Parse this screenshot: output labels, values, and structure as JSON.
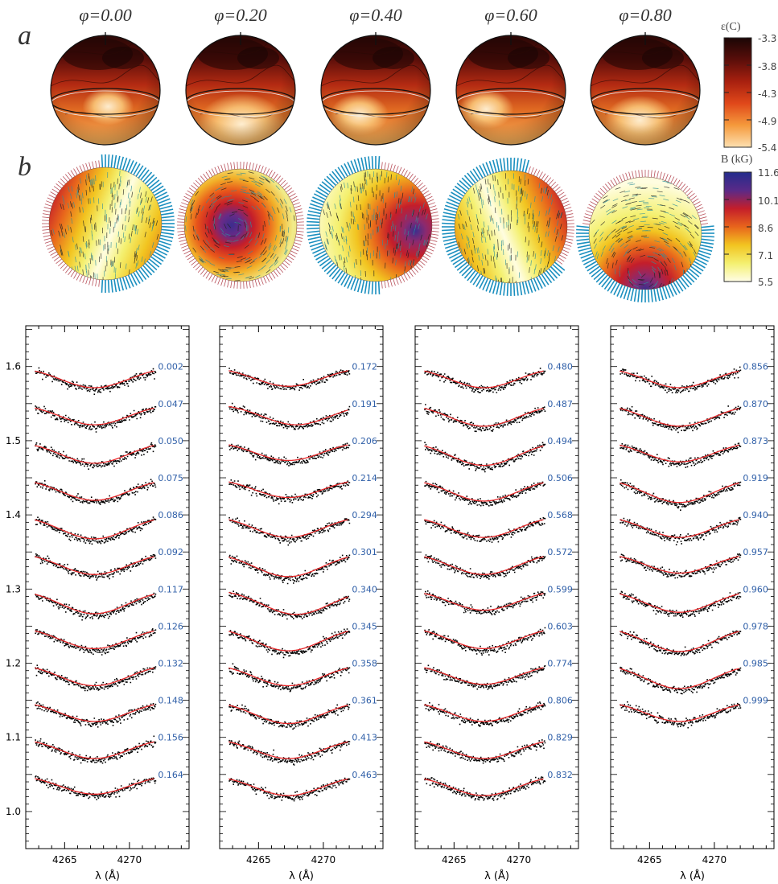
{
  "panel_labels": {
    "a": "a",
    "b": "b"
  },
  "phases": [
    "φ=0.00",
    "φ=0.20",
    "φ=0.40",
    "φ=0.60",
    "φ=0.80"
  ],
  "colorbar_a": {
    "title": "ε(C)",
    "ticks": [
      "-3.3",
      "-3.8",
      "-4.3",
      "-4.9",
      "-5.4"
    ],
    "colors": [
      "#1a0605",
      "#5a0e0a",
      "#a8200f",
      "#e0481a",
      "#f59a3c",
      "#fde0b0"
    ]
  },
  "colorbar_b": {
    "title": "B (kG)",
    "ticks": [
      "11.6",
      "10.1",
      "8.6",
      "7.1",
      "5.5"
    ],
    "colors": [
      "#232c8c",
      "#5a2a88",
      "#c41e2a",
      "#e8651c",
      "#f2c420",
      "#f4f070",
      "#fffde6"
    ]
  },
  "arrow_colors": {
    "outward": "#1a8fbf",
    "inward": "#b8505a"
  },
  "chart_data": [
    {
      "type": "line",
      "xlabel": "λ (Å)",
      "xticks": [
        4265,
        4270
      ],
      "xlim": [
        4262,
        4274.6
      ],
      "ylim": [
        0.95,
        1.655
      ],
      "yticks": [
        "1.0",
        "1.1",
        "1.2",
        "1.3",
        "1.4",
        "1.5",
        "1.6"
      ],
      "offset_step": 0.05,
      "series": [
        {
          "name": "0.002",
          "offset": 1.6,
          "depth": 0.03
        },
        {
          "name": "0.047",
          "offset": 1.55,
          "depth": 0.03
        },
        {
          "name": "0.050",
          "offset": 1.5,
          "depth": 0.032
        },
        {
          "name": "0.075",
          "offset": 1.45,
          "depth": 0.032
        },
        {
          "name": "0.086",
          "offset": 1.4,
          "depth": 0.034
        },
        {
          "name": "0.092",
          "offset": 1.35,
          "depth": 0.032
        },
        {
          "name": "0.117",
          "offset": 1.3,
          "depth": 0.035
        },
        {
          "name": "0.126",
          "offset": 1.25,
          "depth": 0.032
        },
        {
          "name": "0.132",
          "offset": 1.2,
          "depth": 0.032
        },
        {
          "name": "0.148",
          "offset": 1.15,
          "depth": 0.03
        },
        {
          "name": "0.156",
          "offset": 1.1,
          "depth": 0.03
        },
        {
          "name": "0.164",
          "offset": 1.05,
          "depth": 0.028
        }
      ]
    },
    {
      "type": "line",
      "xlabel": "λ (Å)",
      "xticks": [
        4265,
        4270
      ],
      "xlim": [
        4262,
        4274.6
      ],
      "ylim": [
        0.95,
        1.655
      ],
      "series": [
        {
          "name": "0.172",
          "offset": 1.6,
          "depth": 0.028
        },
        {
          "name": "0.191",
          "offset": 1.55,
          "depth": 0.03
        },
        {
          "name": "0.206",
          "offset": 1.5,
          "depth": 0.028
        },
        {
          "name": "0.214",
          "offset": 1.45,
          "depth": 0.028
        },
        {
          "name": "0.294",
          "offset": 1.4,
          "depth": 0.032
        },
        {
          "name": "0.301",
          "offset": 1.35,
          "depth": 0.035
        },
        {
          "name": "0.340",
          "offset": 1.3,
          "depth": 0.036
        },
        {
          "name": "0.345",
          "offset": 1.25,
          "depth": 0.035
        },
        {
          "name": "0.358",
          "offset": 1.2,
          "depth": 0.032
        },
        {
          "name": "0.361",
          "offset": 1.15,
          "depth": 0.033
        },
        {
          "name": "0.413",
          "offset": 1.1,
          "depth": 0.03
        },
        {
          "name": "0.463",
          "offset": 1.05,
          "depth": 0.03
        }
      ]
    },
    {
      "type": "line",
      "xlabel": "λ (Å)",
      "xticks": [
        4265,
        4270
      ],
      "xlim": [
        4262,
        4274.6
      ],
      "ylim": [
        0.95,
        1.655
      ],
      "series": [
        {
          "name": "0.480",
          "offset": 1.6,
          "depth": 0.03
        },
        {
          "name": "0.487",
          "offset": 1.55,
          "depth": 0.032
        },
        {
          "name": "0.494",
          "offset": 1.5,
          "depth": 0.035
        },
        {
          "name": "0.506",
          "offset": 1.45,
          "depth": 0.033
        },
        {
          "name": "0.568",
          "offset": 1.4,
          "depth": 0.032
        },
        {
          "name": "0.572",
          "offset": 1.35,
          "depth": 0.032
        },
        {
          "name": "0.599",
          "offset": 1.3,
          "depth": 0.03
        },
        {
          "name": "0.603",
          "offset": 1.25,
          "depth": 0.032
        },
        {
          "name": "0.774",
          "offset": 1.2,
          "depth": 0.03
        },
        {
          "name": "0.806",
          "offset": 1.15,
          "depth": 0.03
        },
        {
          "name": "0.829",
          "offset": 1.1,
          "depth": 0.03
        },
        {
          "name": "0.832",
          "offset": 1.05,
          "depth": 0.03
        }
      ]
    },
    {
      "type": "line",
      "xlabel": "λ (Å)",
      "xticks": [
        4265,
        4270
      ],
      "xlim": [
        4262,
        4274.6
      ],
      "ylim": [
        0.95,
        1.655
      ],
      "series": [
        {
          "name": "0.856",
          "offset": 1.6,
          "depth": 0.03
        },
        {
          "name": "0.870",
          "offset": 1.55,
          "depth": 0.032
        },
        {
          "name": "0.873",
          "offset": 1.5,
          "depth": 0.03
        },
        {
          "name": "0.919",
          "offset": 1.45,
          "depth": 0.035
        },
        {
          "name": "0.940",
          "offset": 1.4,
          "depth": 0.032
        },
        {
          "name": "0.957",
          "offset": 1.35,
          "depth": 0.03
        },
        {
          "name": "0.960",
          "offset": 1.3,
          "depth": 0.033
        },
        {
          "name": "0.978",
          "offset": 1.25,
          "depth": 0.036
        },
        {
          "name": "0.985",
          "offset": 1.2,
          "depth": 0.036
        },
        {
          "name": "0.999",
          "offset": 1.15,
          "depth": 0.03
        }
      ]
    }
  ]
}
